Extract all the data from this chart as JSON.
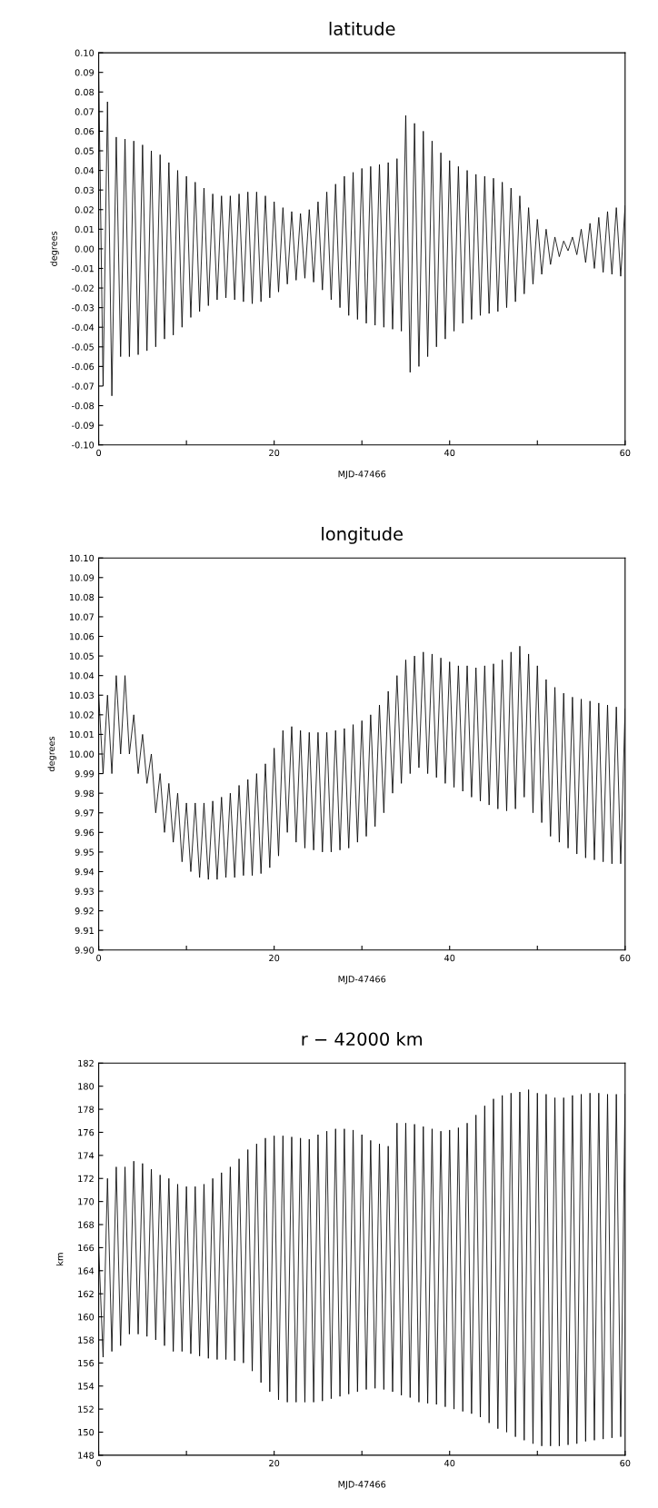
{
  "chart_data": [
    {
      "type": "line",
      "title": "latitude",
      "xlabel": "MJD-47466",
      "ylabel": "degrees",
      "grid": false,
      "xlim": [
        0,
        60
      ],
      "ylim": [
        -0.1,
        0.1
      ],
      "xticks": [
        0,
        {
          "value": 10,
          "label": null
        },
        20,
        {
          "value": 30,
          "label": null
        },
        40,
        {
          "value": 50,
          "label": null
        },
        60
      ],
      "yticks": [
        {
          "value": -0.1,
          "label": "-0.10"
        },
        {
          "value": -0.09,
          "label": "-0.09"
        },
        {
          "value": -0.08,
          "label": "-0.08"
        },
        {
          "value": -0.07,
          "label": "-0.07"
        },
        {
          "value": -0.06,
          "label": "-0.06"
        },
        {
          "value": -0.05,
          "label": "-0.05"
        },
        {
          "value": -0.04,
          "label": "-0.04"
        },
        {
          "value": -0.03,
          "label": "-0.03"
        },
        {
          "value": -0.02,
          "label": "-0.02"
        },
        {
          "value": -0.01,
          "label": "-0.01"
        },
        {
          "value": 0,
          "label": "0.00"
        },
        {
          "value": 0.01,
          "label": "0.01"
        },
        {
          "value": 0.02,
          "label": "0.02"
        },
        {
          "value": 0.03,
          "label": "0.03"
        },
        {
          "value": 0.04,
          "label": "0.04"
        },
        {
          "value": 0.05,
          "label": "0.05"
        },
        {
          "value": 0.06,
          "label": "0.06"
        },
        {
          "value": 0.07,
          "label": "0.07"
        },
        {
          "value": 0.08,
          "label": "0.08"
        },
        {
          "value": 0.09,
          "label": "0.09"
        },
        {
          "value": 0.1,
          "label": "0.10"
        }
      ],
      "x": [
        0,
        0.5,
        1,
        1.5,
        2,
        2.5,
        3,
        3.5,
        4,
        4.5,
        5,
        5.5,
        6,
        6.5,
        7,
        7.5,
        8,
        8.5,
        9,
        9.5,
        10,
        10.5,
        11,
        11.5,
        12,
        12.5,
        13,
        13.5,
        14,
        14.5,
        15,
        15.5,
        16,
        16.5,
        17,
        17.5,
        18,
        18.5,
        19,
        19.5,
        20,
        20.5,
        21,
        21.5,
        22,
        22.5,
        23,
        23.5,
        24,
        24.5,
        25,
        25.5,
        26,
        26.5,
        27,
        27.5,
        28,
        28.5,
        29,
        29.5,
        30,
        30.5,
        31,
        31.5,
        32,
        32.5,
        33,
        33.5,
        34,
        34.5,
        35,
        35.5,
        36,
        36.5,
        37,
        37.5,
        38,
        38.5,
        39,
        39.5,
        40,
        40.5,
        41,
        41.5,
        42,
        42.5,
        43,
        43.5,
        44,
        44.5,
        45,
        45.5,
        46,
        46.5,
        47,
        47.5,
        48,
        48.5,
        49,
        49.5,
        50,
        50.5,
        51,
        51.5,
        52,
        52.5,
        53,
        53.5,
        54,
        54.5,
        55,
        55.5,
        56,
        56.5,
        57,
        57.5,
        58,
        58.5,
        59,
        59.5,
        60
      ],
      "series": [
        {
          "color": "#000000",
          "values": [
            0.09,
            -0.07,
            0.075,
            -0.075,
            0.057,
            -0.055,
            0.056,
            -0.055,
            0.055,
            -0.054,
            0.053,
            -0.052,
            0.05,
            -0.05,
            0.048,
            -0.046,
            0.044,
            -0.044,
            0.04,
            -0.04,
            0.037,
            -0.035,
            0.034,
            -0.032,
            0.031,
            -0.029,
            0.028,
            -0.026,
            0.027,
            -0.025,
            0.027,
            -0.026,
            0.028,
            -0.027,
            0.029,
            -0.028,
            0.029,
            -0.027,
            0.027,
            -0.025,
            0.024,
            -0.022,
            0.021,
            -0.018,
            0.019,
            -0.016,
            0.018,
            -0.015,
            0.02,
            -0.017,
            0.024,
            -0.021,
            0.029,
            -0.026,
            0.033,
            -0.03,
            0.037,
            -0.034,
            0.039,
            -0.036,
            0.041,
            -0.038,
            0.042,
            -0.039,
            0.043,
            -0.04,
            0.044,
            -0.041,
            0.046,
            -0.042,
            0.068,
            -0.063,
            0.064,
            -0.06,
            0.06,
            -0.055,
            0.055,
            -0.05,
            0.049,
            -0.046,
            0.045,
            -0.042,
            0.042,
            -0.038,
            0.04,
            -0.036,
            0.038,
            -0.034,
            0.037,
            -0.033,
            0.036,
            -0.032,
            0.034,
            -0.03,
            0.031,
            -0.027,
            0.027,
            -0.023,
            0.021,
            -0.018,
            0.015,
            -0.013,
            0.01,
            -0.008,
            0.006,
            -0.004,
            0.004,
            -0.001,
            0.006,
            -0.003,
            0.01,
            -0.007,
            0.013,
            -0.01,
            0.016,
            -0.012,
            0.019,
            -0.013,
            0.021,
            -0.014,
            0.022
          ]
        }
      ]
    },
    {
      "type": "line",
      "title": "longitude",
      "xlabel": "MJD-47466",
      "ylabel": "degrees",
      "grid": false,
      "xlim": [
        0,
        60
      ],
      "ylim": [
        9.9,
        10.1
      ],
      "xticks": [
        0,
        {
          "value": 10,
          "label": null
        },
        20,
        {
          "value": 30,
          "label": null
        },
        40,
        {
          "value": 50,
          "label": null
        },
        60
      ],
      "yticks": [
        {
          "value": 9.9,
          "label": "9.90"
        },
        {
          "value": 9.91,
          "label": "9.91"
        },
        {
          "value": 9.92,
          "label": "9.92"
        },
        {
          "value": 9.93,
          "label": "9.93"
        },
        {
          "value": 9.94,
          "label": "9.94"
        },
        {
          "value": 9.95,
          "label": "9.95"
        },
        {
          "value": 9.96,
          "label": "9.96"
        },
        {
          "value": 9.97,
          "label": "9.97"
        },
        {
          "value": 9.98,
          "label": "9.98"
        },
        {
          "value": 9.99,
          "label": "9.99"
        },
        {
          "value": 10.0,
          "label": "10.00"
        },
        {
          "value": 10.01,
          "label": "10.01"
        },
        {
          "value": 10.02,
          "label": "10.02"
        },
        {
          "value": 10.03,
          "label": "10.03"
        },
        {
          "value": 10.04,
          "label": "10.04"
        },
        {
          "value": 10.05,
          "label": "10.05"
        },
        {
          "value": 10.06,
          "label": "10.06"
        },
        {
          "value": 10.07,
          "label": "10.07"
        },
        {
          "value": 10.08,
          "label": "10.08"
        },
        {
          "value": 10.09,
          "label": "10.09"
        },
        {
          "value": 10.1,
          "label": "10.10"
        }
      ],
      "x": [
        0,
        0.5,
        1,
        1.5,
        2,
        2.5,
        3,
        3.5,
        4,
        4.5,
        5,
        5.5,
        6,
        6.5,
        7,
        7.5,
        8,
        8.5,
        9,
        9.5,
        10,
        10.5,
        11,
        11.5,
        12,
        12.5,
        13,
        13.5,
        14,
        14.5,
        15,
        15.5,
        16,
        16.5,
        17,
        17.5,
        18,
        18.5,
        19,
        19.5,
        20,
        20.5,
        21,
        21.5,
        22,
        22.5,
        23,
        23.5,
        24,
        24.5,
        25,
        25.5,
        26,
        26.5,
        27,
        27.5,
        28,
        28.5,
        29,
        29.5,
        30,
        30.5,
        31,
        31.5,
        32,
        32.5,
        33,
        33.5,
        34,
        34.5,
        35,
        35.5,
        36,
        36.5,
        37,
        37.5,
        38,
        38.5,
        39,
        39.5,
        40,
        40.5,
        41,
        41.5,
        42,
        42.5,
        43,
        43.5,
        44,
        44.5,
        45,
        45.5,
        46,
        46.5,
        47,
        47.5,
        48,
        48.5,
        49,
        49.5,
        50,
        50.5,
        51,
        51.5,
        52,
        52.5,
        53,
        53.5,
        54,
        54.5,
        55,
        55.5,
        56,
        56.5,
        57,
        57.5,
        58,
        58.5,
        59,
        59.5,
        60
      ],
      "series": [
        {
          "color": "#000000",
          "values": [
            10.03,
            9.99,
            10.03,
            9.99,
            10.04,
            10.0,
            10.04,
            10.0,
            10.02,
            9.99,
            10.01,
            9.985,
            10.0,
            9.97,
            9.99,
            9.96,
            9.985,
            9.955,
            9.98,
            9.945,
            9.975,
            9.94,
            9.975,
            9.937,
            9.975,
            9.936,
            9.976,
            9.936,
            9.978,
            9.937,
            9.98,
            9.937,
            9.984,
            9.938,
            9.987,
            9.938,
            9.99,
            9.939,
            9.995,
            9.942,
            10.003,
            9.948,
            10.012,
            9.96,
            10.014,
            9.955,
            10.012,
            9.952,
            10.011,
            9.951,
            10.011,
            9.95,
            10.011,
            9.95,
            10.012,
            9.951,
            10.013,
            9.952,
            10.015,
            9.955,
            10.017,
            9.958,
            10.02,
            9.963,
            10.025,
            9.97,
            10.032,
            9.98,
            10.04,
            9.985,
            10.048,
            9.99,
            10.05,
            9.993,
            10.052,
            9.99,
            10.051,
            9.988,
            10.049,
            9.985,
            10.047,
            9.983,
            10.045,
            9.981,
            10.045,
            9.978,
            10.044,
            9.976,
            10.045,
            9.974,
            10.046,
            9.972,
            10.048,
            9.971,
            10.052,
            9.972,
            10.055,
            9.978,
            10.051,
            9.97,
            10.045,
            9.965,
            10.038,
            9.958,
            10.034,
            9.955,
            10.031,
            9.952,
            10.029,
            9.949,
            10.028,
            9.947,
            10.027,
            9.946,
            10.026,
            9.945,
            10.025,
            9.944,
            10.024,
            9.944,
            10.023
          ]
        }
      ]
    },
    {
      "type": "line",
      "title": "r − 42000 km",
      "xlabel": "MJD-47466",
      "ylabel": "km",
      "grid": false,
      "xlim": [
        0,
        60
      ],
      "ylim": [
        148,
        182
      ],
      "xticks": [
        0,
        {
          "value": 10,
          "label": null
        },
        20,
        {
          "value": 30,
          "label": null
        },
        40,
        {
          "value": 50,
          "label": null
        },
        60
      ],
      "yticks": [
        148,
        150,
        152,
        154,
        156,
        158,
        160,
        162,
        164,
        166,
        168,
        170,
        172,
        174,
        176,
        178,
        180,
        182
      ],
      "x": [
        0,
        0.5,
        1,
        1.5,
        2,
        2.5,
        3,
        3.5,
        4,
        4.5,
        5,
        5.5,
        6,
        6.5,
        7,
        7.5,
        8,
        8.5,
        9,
        9.5,
        10,
        10.5,
        11,
        11.5,
        12,
        12.5,
        13,
        13.5,
        14,
        14.5,
        15,
        15.5,
        16,
        16.5,
        17,
        17.5,
        18,
        18.5,
        19,
        19.5,
        20,
        20.5,
        21,
        21.5,
        22,
        22.5,
        23,
        23.5,
        24,
        24.5,
        25,
        25.5,
        26,
        26.5,
        27,
        27.5,
        28,
        28.5,
        29,
        29.5,
        30,
        30.5,
        31,
        31.5,
        32,
        32.5,
        33,
        33.5,
        34,
        34.5,
        35,
        35.5,
        36,
        36.5,
        37,
        37.5,
        38,
        38.5,
        39,
        39.5,
        40,
        40.5,
        41,
        41.5,
        42,
        42.5,
        43,
        43.5,
        44,
        44.5,
        45,
        45.5,
        46,
        46.5,
        47,
        47.5,
        48,
        48.5,
        49,
        49.5,
        50,
        50.5,
        51,
        51.5,
        52,
        52.5,
        53,
        53.5,
        54,
        54.5,
        55,
        55.5,
        56,
        56.5,
        57,
        57.5,
        58,
        58.5,
        59,
        59.5,
        60
      ],
      "series": [
        {
          "color": "#000000",
          "values": [
            166,
            156.5,
            172,
            157,
            173,
            157.5,
            173,
            158.5,
            173.5,
            158.5,
            173.3,
            158.3,
            172.8,
            158,
            172.3,
            157.5,
            172,
            157,
            171.5,
            157,
            171.3,
            156.8,
            171.3,
            156.6,
            171.5,
            156.4,
            172,
            156.3,
            172.5,
            156.3,
            173,
            156.2,
            173.7,
            156,
            174.5,
            155.3,
            175,
            154.3,
            175.5,
            153.5,
            175.7,
            152.8,
            175.7,
            152.6,
            175.6,
            152.6,
            175.5,
            152.6,
            175.4,
            152.6,
            175.8,
            152.7,
            176.1,
            152.9,
            176.3,
            153.1,
            176.3,
            153.3,
            176.2,
            153.5,
            175.8,
            153.7,
            175.3,
            153.8,
            175,
            153.7,
            174.8,
            153.5,
            176.8,
            153.2,
            176.8,
            153,
            176.7,
            152.6,
            176.5,
            152.5,
            176.3,
            152.4,
            176.1,
            152.2,
            176.2,
            152,
            176.4,
            151.8,
            176.8,
            151.6,
            177.5,
            151.3,
            178.3,
            150.8,
            178.9,
            150.3,
            179.2,
            150,
            179.4,
            149.6,
            179.5,
            149.3,
            179.7,
            149,
            179.4,
            148.8,
            179.3,
            148.8,
            179,
            148.8,
            179,
            148.9,
            179.2,
            149,
            179.3,
            149.2,
            179.4,
            149.3,
            179.4,
            149.4,
            179.3,
            149.5,
            179.3,
            149.6,
            179.3
          ]
        }
      ]
    }
  ]
}
